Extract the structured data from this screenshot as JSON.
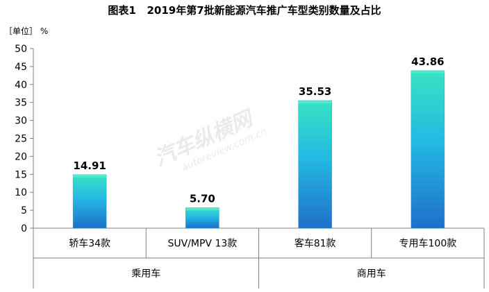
{
  "header": {
    "title_prefix": "图表1",
    "title": "2019年第7批新能源汽车推广车型类别数量及占比",
    "unit": "［单位］ %"
  },
  "watermark": {
    "logo_text": "汽车纵横网",
    "url_text": "autoreview.com.cn"
  },
  "chart_data": {
    "type": "bar",
    "title": "2019年第7批新能源汽车推广车型类别数量及占比",
    "ylabel": "［单位］ %",
    "ylim": [
      0,
      50
    ],
    "yticks": [
      0,
      5,
      10,
      15,
      20,
      25,
      30,
      35,
      40,
      45,
      50
    ],
    "categories": [
      "轿车34款",
      "SUV/MPV 13款",
      "客车81款",
      "专用车100款"
    ],
    "values": [
      14.91,
      5.7,
      35.53,
      43.86
    ],
    "value_labels": [
      "14.91",
      "5.70",
      "35.53",
      "43.86"
    ],
    "groups": [
      {
        "label": "乘用车",
        "categories": [
          "轿车34款",
          "SUV/MPV 13款"
        ]
      },
      {
        "label": "商用车",
        "categories": [
          "客车81款",
          "专用车100款"
        ]
      }
    ],
    "grid": false,
    "legend": "none",
    "colors": {
      "bar_top": "#37e3c2",
      "bar_mid": "#23b9e3",
      "bar_bottom": "#1f6fc9",
      "axis": "#7f7f7f"
    }
  }
}
